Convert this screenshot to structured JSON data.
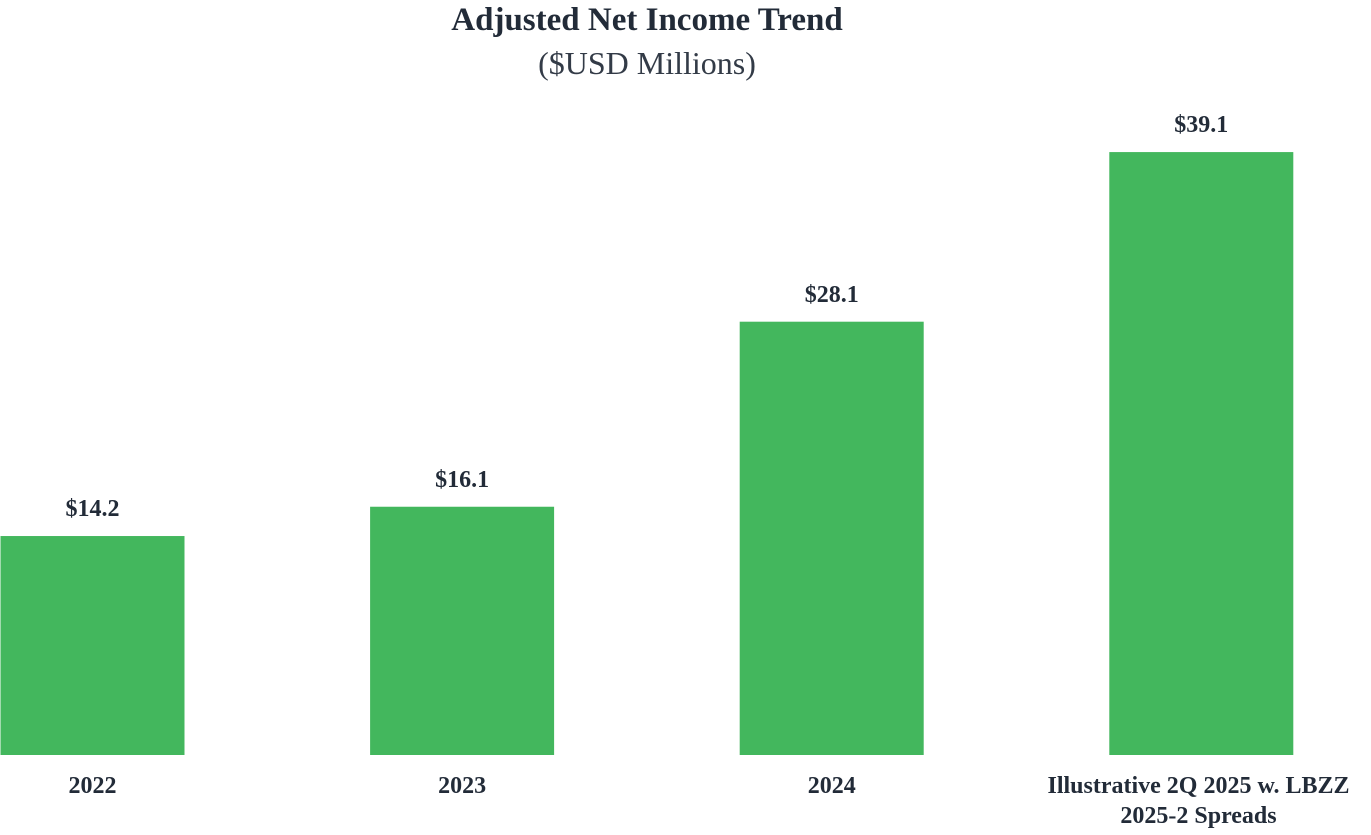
{
  "chart_data": {
    "type": "bar",
    "title": "Adjusted Net Income Trend",
    "subtitle": "($USD Millions)",
    "categories": [
      "2022",
      "2023",
      "2024",
      "Illustrative 2Q 2025 w. LBZZ 2025-2 Spreads"
    ],
    "values": [
      14.2,
      16.1,
      28.1,
      39.1
    ],
    "value_labels": [
      "$14.2",
      "$16.1",
      "$28.1",
      "$39.1"
    ],
    "color": "#43b75d"
  }
}
